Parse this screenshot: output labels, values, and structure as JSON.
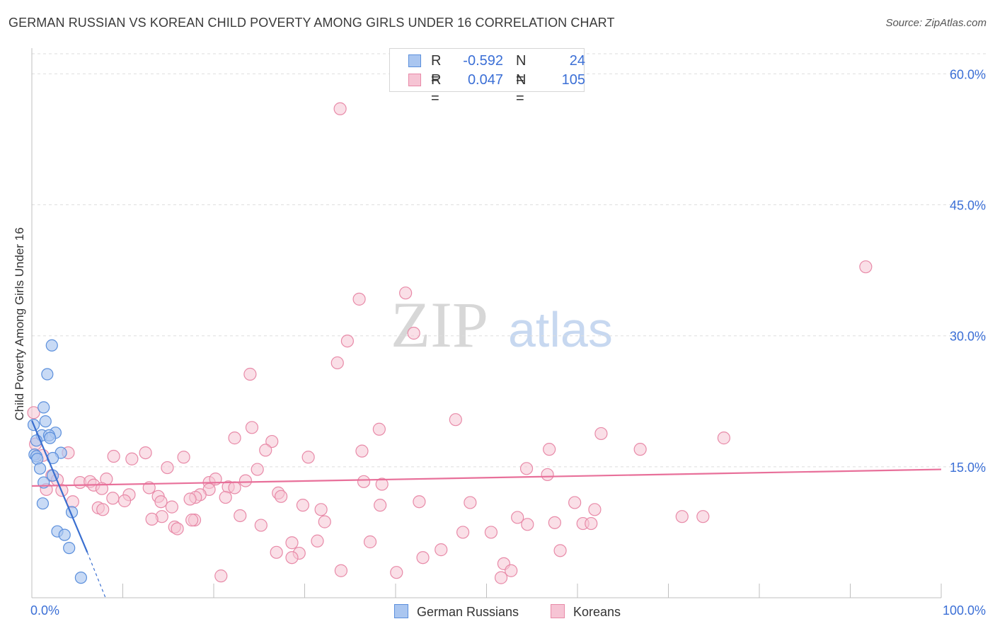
{
  "title": "GERMAN RUSSIAN VS KOREAN CHILD POVERTY AMONG GIRLS UNDER 16 CORRELATION CHART",
  "source": "Source: ZipAtlas.com",
  "legend": {
    "german_russians": {
      "r_label": "R =",
      "r_value": "-0.592",
      "n_label": "N =",
      "n_value": "24"
    },
    "koreans": {
      "r_label": "R =",
      "r_value": "0.047",
      "n_label": "N =",
      "n_value": "105"
    }
  },
  "watermark": {
    "zip": "ZIP",
    "atlas": "atlas"
  },
  "chart_data": {
    "type": "scatter",
    "title": "GERMAN RUSSIAN VS KOREAN CHILD POVERTY AMONG GIRLS UNDER 16 CORRELATION CHART",
    "xlabel": "",
    "ylabel": "Child Poverty Among Girls Under 16",
    "xlim": [
      0,
      100
    ],
    "ylim": [
      0,
      62.3
    ],
    "x_tick_labels": [
      "0.0%",
      "100.0%"
    ],
    "y_ticks": [
      15,
      30,
      45,
      60
    ],
    "y_tick_labels": [
      "15.0%",
      "30.0%",
      "45.0%",
      "60.0%"
    ],
    "grid": true,
    "colors": {
      "german_russians_fill": "#aac6f0",
      "german_russians_stroke": "#5b8fdc",
      "german_russians_line": "#3a6fd0",
      "koreans_fill": "#f6c4d4",
      "koreans_stroke": "#e88aa8",
      "koreans_line": "#e8709a",
      "axis_text": "#3b6fd6"
    },
    "series": [
      {
        "name": "German Russians",
        "trend": {
          "x_start": 0,
          "y_start": 20.3,
          "x_end": 6.1,
          "y_end": 5.2,
          "dash_to_x": 8.1,
          "dash_to_y": 0.0
        },
        "points": [
          [
            2.2,
            28.9
          ],
          [
            1.7,
            25.6
          ],
          [
            1.3,
            21.8
          ],
          [
            1.5,
            20.2
          ],
          [
            0.2,
            19.8
          ],
          [
            2.6,
            18.9
          ],
          [
            1.1,
            18.6
          ],
          [
            1.9,
            18.6
          ],
          [
            2.0,
            18.3
          ],
          [
            0.5,
            18.0
          ],
          [
            3.2,
            16.6
          ],
          [
            0.3,
            16.4
          ],
          [
            0.5,
            16.2
          ],
          [
            0.6,
            15.9
          ],
          [
            2.3,
            16.0
          ],
          [
            0.9,
            14.8
          ],
          [
            2.3,
            14.0
          ],
          [
            1.3,
            13.2
          ],
          [
            1.2,
            10.8
          ],
          [
            4.4,
            9.8
          ],
          [
            2.8,
            7.6
          ],
          [
            3.6,
            7.2
          ],
          [
            4.1,
            5.7
          ],
          [
            5.4,
            2.3
          ]
        ]
      },
      {
        "name": "Koreans",
        "trend": {
          "x_start": 0,
          "y_start": 12.8,
          "x_end": 100,
          "y_end": 14.7
        },
        "points": [
          [
            33.9,
            56.0
          ],
          [
            91.7,
            37.9
          ],
          [
            41.1,
            34.9
          ],
          [
            36.0,
            34.2
          ],
          [
            42.0,
            30.3
          ],
          [
            34.7,
            29.4
          ],
          [
            33.6,
            26.9
          ],
          [
            24.0,
            25.6
          ],
          [
            46.6,
            20.4
          ],
          [
            24.2,
            19.5
          ],
          [
            38.2,
            19.3
          ],
          [
            62.6,
            18.8
          ],
          [
            22.3,
            18.3
          ],
          [
            26.4,
            17.9
          ],
          [
            76.1,
            18.3
          ],
          [
            0.2,
            21.2
          ],
          [
            0.4,
            17.6
          ],
          [
            1.2,
            16.3
          ],
          [
            4.0,
            16.6
          ],
          [
            9.0,
            16.2
          ],
          [
            11.0,
            15.9
          ],
          [
            12.5,
            16.6
          ],
          [
            16.7,
            16.1
          ],
          [
            25.7,
            16.9
          ],
          [
            30.4,
            16.1
          ],
          [
            36.3,
            16.8
          ],
          [
            56.9,
            17.0
          ],
          [
            66.9,
            17.0
          ],
          [
            14.9,
            14.9
          ],
          [
            24.8,
            14.7
          ],
          [
            54.4,
            14.8
          ],
          [
            56.7,
            14.1
          ],
          [
            2.2,
            14.0
          ],
          [
            2.8,
            13.5
          ],
          [
            5.3,
            13.2
          ],
          [
            6.4,
            13.3
          ],
          [
            8.2,
            13.6
          ],
          [
            19.5,
            13.2
          ],
          [
            20.2,
            13.6
          ],
          [
            23.5,
            13.4
          ],
          [
            36.5,
            13.3
          ],
          [
            38.5,
            13.0
          ],
          [
            1.6,
            12.4
          ],
          [
            3.3,
            12.3
          ],
          [
            6.8,
            12.9
          ],
          [
            7.7,
            12.5
          ],
          [
            10.7,
            11.8
          ],
          [
            12.9,
            12.6
          ],
          [
            19.5,
            12.4
          ],
          [
            21.6,
            12.7
          ],
          [
            18.5,
            11.8
          ],
          [
            18.0,
            11.5
          ],
          [
            21.3,
            11.5
          ],
          [
            27.1,
            12.0
          ],
          [
            27.4,
            11.6
          ],
          [
            4.5,
            11.0
          ],
          [
            8.9,
            11.4
          ],
          [
            10.2,
            11.1
          ],
          [
            13.9,
            11.6
          ],
          [
            14.2,
            11.0
          ],
          [
            15.4,
            10.4
          ],
          [
            17.4,
            11.3
          ],
          [
            29.8,
            10.6
          ],
          [
            38.3,
            10.6
          ],
          [
            42.6,
            11.0
          ],
          [
            48.2,
            10.9
          ],
          [
            59.7,
            10.9
          ],
          [
            7.3,
            10.3
          ],
          [
            7.8,
            10.1
          ],
          [
            31.8,
            10.1
          ],
          [
            61.9,
            10.1
          ],
          [
            14.3,
            9.3
          ],
          [
            13.2,
            9.0
          ],
          [
            17.9,
            8.9
          ],
          [
            17.6,
            8.9
          ],
          [
            22.9,
            9.4
          ],
          [
            32.2,
            8.7
          ],
          [
            53.4,
            9.2
          ],
          [
            54.5,
            8.4
          ],
          [
            57.5,
            8.6
          ],
          [
            60.6,
            8.5
          ],
          [
            61.5,
            8.5
          ],
          [
            71.5,
            9.3
          ],
          [
            73.8,
            9.3
          ],
          [
            15.7,
            8.1
          ],
          [
            16.0,
            7.9
          ],
          [
            25.2,
            8.3
          ],
          [
            47.4,
            7.5
          ],
          [
            50.5,
            7.5
          ],
          [
            28.6,
            6.3
          ],
          [
            31.4,
            6.5
          ],
          [
            37.2,
            6.4
          ],
          [
            26.9,
            5.2
          ],
          [
            29.4,
            5.1
          ],
          [
            45.0,
            5.5
          ],
          [
            58.1,
            5.4
          ],
          [
            28.6,
            4.6
          ],
          [
            43.0,
            4.6
          ],
          [
            51.9,
            3.9
          ],
          [
            52.7,
            3.1
          ],
          [
            34.0,
            3.1
          ],
          [
            40.1,
            2.9
          ],
          [
            51.6,
            2.3
          ],
          [
            20.8,
            2.5
          ],
          [
            22.3,
            12.6
          ]
        ]
      }
    ]
  }
}
